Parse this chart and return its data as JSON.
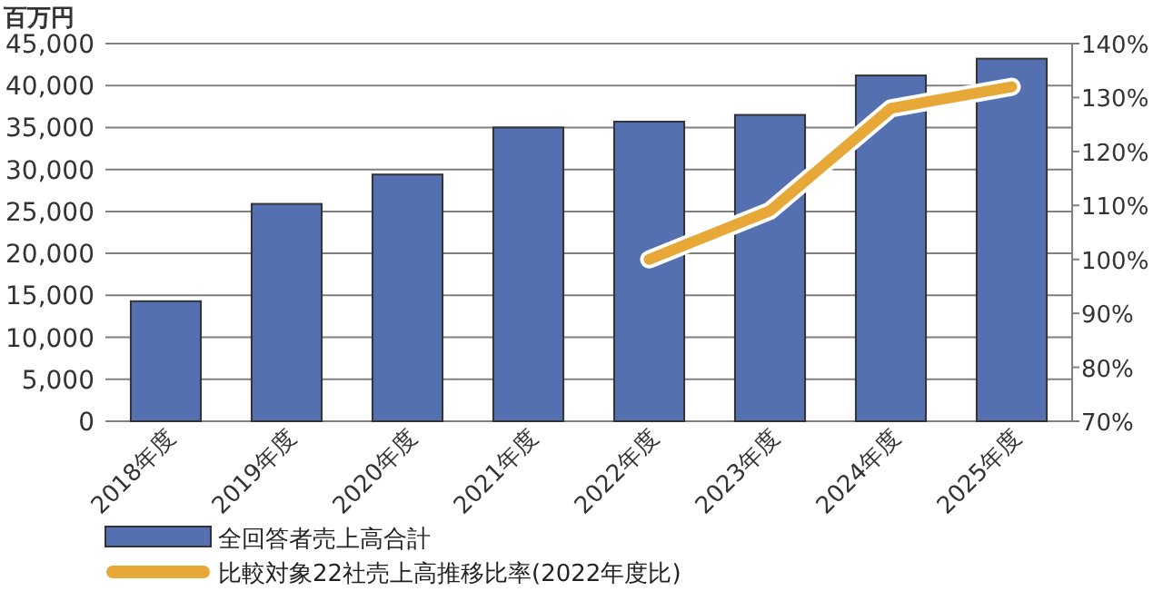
{
  "chart_data": {
    "type": "bar",
    "ylabel": "百万円",
    "categories": [
      "2018年度",
      "2019年度",
      "2020年度",
      "2021年度",
      "2022年度",
      "2023年度",
      "2024年度",
      "2025年度"
    ],
    "series": [
      {
        "name": "全回答者売上高合計",
        "color": "#5470b0",
        "values": [
          14300,
          25900,
          29400,
          35000,
          35700,
          36500,
          41200,
          43200
        ]
      },
      {
        "name": "比較対象22社売上高推移比率(2022年度比)",
        "type": "line",
        "axis": "y2",
        "color": "#e8a838",
        "values": [
          null,
          null,
          null,
          null,
          100,
          109,
          128,
          132
        ]
      }
    ],
    "ylim": [
      0,
      45000
    ],
    "yticks": [
      {
        "value": 0,
        "label": "0"
      },
      {
        "value": 5000,
        "label": "5,000"
      },
      {
        "value": 10000,
        "label": "10,000"
      },
      {
        "value": 15000,
        "label": "15,000"
      },
      {
        "value": 20000,
        "label": "20,000"
      },
      {
        "value": 25000,
        "label": "25,000"
      },
      {
        "value": 30000,
        "label": "30,000"
      },
      {
        "value": 35000,
        "label": "35,000"
      },
      {
        "value": 40000,
        "label": "40,000"
      },
      {
        "value": 45000,
        "label": "45,000"
      }
    ],
    "y2lim": [
      70,
      140
    ],
    "y2ticks": [
      {
        "value": 70,
        "label": "70%"
      },
      {
        "value": 80,
        "label": "80%"
      },
      {
        "value": 90,
        "label": "90%"
      },
      {
        "value": 100,
        "label": "100%"
      },
      {
        "value": 110,
        "label": "110%"
      },
      {
        "value": 120,
        "label": "120%"
      },
      {
        "value": 130,
        "label": "130%"
      },
      {
        "value": 140,
        "label": "140%"
      }
    ],
    "grid": "y",
    "legend": "bottom left"
  }
}
